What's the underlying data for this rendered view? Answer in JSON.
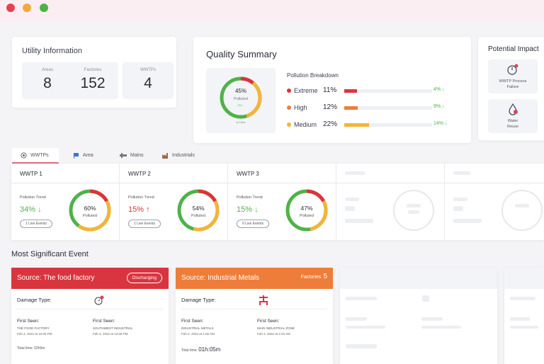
{
  "window": {
    "controls": [
      "close",
      "minimize",
      "maximize"
    ]
  },
  "utility": {
    "title": "Utility Information",
    "stats": [
      {
        "label": "Areas",
        "value": "8"
      },
      {
        "label": "Factories",
        "value": "152"
      },
      {
        "label": "WWTPs",
        "value": "4"
      }
    ]
  },
  "quality": {
    "title": "Quality Summary",
    "donut": {
      "percent": "45%",
      "label": "Polluted",
      "trend": "2% ↓",
      "clear_label": "● Clear",
      "polluted_fraction": 0.45
    },
    "breakdown_title": "Pollution Breakdown",
    "rows": [
      {
        "name": "Extreme",
        "percent": "11%",
        "trend": "4% ↓",
        "color": "#d9353f",
        "fraction": 0.11
      },
      {
        "name": "High",
        "percent": "12%",
        "trend": "9% ↓",
        "color": "#ee7d3a",
        "fraction": 0.12
      },
      {
        "name": "Medium",
        "percent": "22%",
        "trend": "14% ↓",
        "color": "#f4b43a",
        "fraction": 0.22
      }
    ]
  },
  "impact": {
    "title": "Potential Impact",
    "items": [
      {
        "label_line1": "WWTP Process",
        "label_line2": "Failure",
        "icon": "process-failure-icon"
      },
      {
        "label_line1": "Water",
        "label_line2": "Reuse",
        "icon": "water-drop-icon"
      }
    ]
  },
  "tabs": [
    {
      "label": "WWTPs",
      "icon": "target-icon",
      "active": true
    },
    {
      "label": "Area",
      "icon": "flag-icon",
      "active": false
    },
    {
      "label": "Mains",
      "icon": "pipe-icon",
      "active": false
    },
    {
      "label": "Industrials",
      "icon": "factory-icon",
      "active": false
    }
  ],
  "wwtps": [
    {
      "name": "WWTP 1",
      "trend_label": "Pollution Trend",
      "trend_value": "34% ↓",
      "trend_color": "#4fb248",
      "events": "1 Live Events",
      "percent": "60%",
      "label": "Polluted",
      "polluted_fraction": 0.6
    },
    {
      "name": "WWTP 2",
      "trend_label": "Pollution Trend",
      "trend_value": "15% ↑",
      "trend_color": "#d9353f",
      "events": "1 Live Events",
      "percent": "54%",
      "label": "Polluted",
      "polluted_fraction": 0.54
    },
    {
      "name": "WWTP 3",
      "trend_label": "Pollution Trend",
      "trend_value": "15% ↓",
      "trend_color": "#4fb248",
      "events": "0 Live Events",
      "percent": "47%",
      "label": "Polluted",
      "polluted_fraction": 0.47
    }
  ],
  "most_significant": {
    "title": "Most Significant Event",
    "events": [
      {
        "source": "Source:  The food factory",
        "badge": "Discharging",
        "header_color": "#d9353f",
        "damage_label": "Damage Type:",
        "damage_icon": "gauge-alert-icon",
        "first_seen_a": {
          "label": "First Seen:",
          "name": "THE FOOD FACTORY",
          "date": "Feb 4, 2022 at 10:05 PM"
        },
        "first_seen_b": {
          "label": "First Seen:",
          "name": "SOUTHWEST INDUSTRIAL",
          "date": "Feb 4, 2022 at 12:05 PM"
        },
        "total_label": "Total time: ",
        "total_value": "02h5m"
      },
      {
        "source": "Source:  Industrial Metals",
        "factories_label": "Factories",
        "factories_count": "5",
        "header_color": "#ee7d3a",
        "damage_label": "Damage Type:",
        "damage_icon": "pipe-network-icon",
        "first_seen_a": {
          "label": "First Seen:",
          "name": "INDUSTRIAL METALS",
          "date": "Feb 2, 2022 at 1:00 AM"
        },
        "first_seen_b": {
          "label": "First Seen:",
          "name": "MAIN INDUSTRIAL ZONE",
          "date": "Feb 2, 2022 at 2:23 AM"
        },
        "total_label": "Total time: ",
        "total_value": "01h:05m"
      }
    ]
  }
}
